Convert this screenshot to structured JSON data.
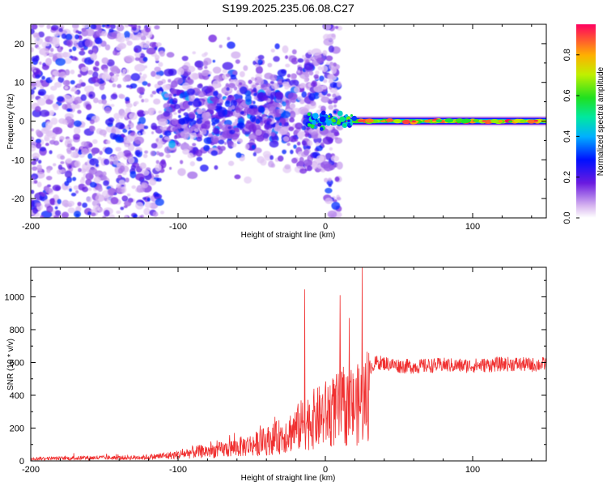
{
  "title": "S199.2025.235.06.08.C27",
  "colors": {
    "snr_line": "#f03030",
    "frame": "#000000"
  },
  "chart_data": [
    {
      "type": "heatmap",
      "title": "S199.2025.235.06.08.C27",
      "xlabel": "Height of straight line (km)",
      "ylabel": "Frequency (Hz)",
      "xlim": [
        -200,
        150
      ],
      "ylim": [
        -25,
        25
      ],
      "x_ticks": [
        -200,
        -100,
        0,
        100
      ],
      "y_ticks": [
        -20,
        -10,
        0,
        10,
        20
      ],
      "colorbar": {
        "label": "Normalized spectral amplitude",
        "range": [
          0.0,
          0.95
        ],
        "ticks": [
          0.0,
          0.2,
          0.4,
          0.6,
          0.8
        ],
        "colormap": "rainbow"
      },
      "features": [
        {
          "x_range": [
            -200,
            -20
          ],
          "frequency_range": [
            -25,
            25
          ],
          "amplitude": "low, diffuse broadband noise"
        },
        {
          "x_range": [
            -20,
            0
          ],
          "frequency_range": [
            -13,
            18
          ],
          "amplitude": "moderate scattered energy"
        },
        {
          "x_range": [
            0,
            150
          ],
          "frequency_range": [
            -1,
            1
          ],
          "amplitude": "high, narrow band centred near 0 Hz (peak ~0.9)"
        }
      ]
    },
    {
      "type": "line",
      "xlabel": "Height of straight line (km)",
      "ylabel": "SNR (10 * v/v)",
      "xlim": [
        -200,
        150
      ],
      "ylim": [
        0,
        1180
      ],
      "x_ticks": [
        -200,
        -100,
        0,
        100
      ],
      "y_ticks": [
        0,
        200,
        400,
        600,
        800,
        1000
      ],
      "series": [
        {
          "name": "SNR",
          "x": [
            -200,
            -180,
            -160,
            -140,
            -120,
            -100,
            -90,
            -80,
            -70,
            -60,
            -50,
            -40,
            -30,
            -20,
            -15,
            -10,
            -5,
            0,
            5,
            10,
            15,
            20,
            25,
            30,
            35,
            40,
            50,
            60,
            70,
            80,
            90,
            100,
            110,
            120,
            130,
            140,
            150
          ],
          "y": [
            20,
            20,
            25,
            25,
            30,
            50,
            70,
            80,
            90,
            110,
            130,
            160,
            200,
            260,
            300,
            330,
            350,
            380,
            400,
            420,
            430,
            440,
            480,
            570,
            600,
            595,
            580,
            575,
            580,
            585,
            580,
            580,
            585,
            590,
            590,
            585,
            590
          ],
          "annotated_spikes": [
            {
              "x": -14,
              "y": 1045
            },
            {
              "x": 10,
              "y": 1010
            },
            {
              "x": 25,
              "y": 1180
            }
          ]
        }
      ]
    }
  ]
}
